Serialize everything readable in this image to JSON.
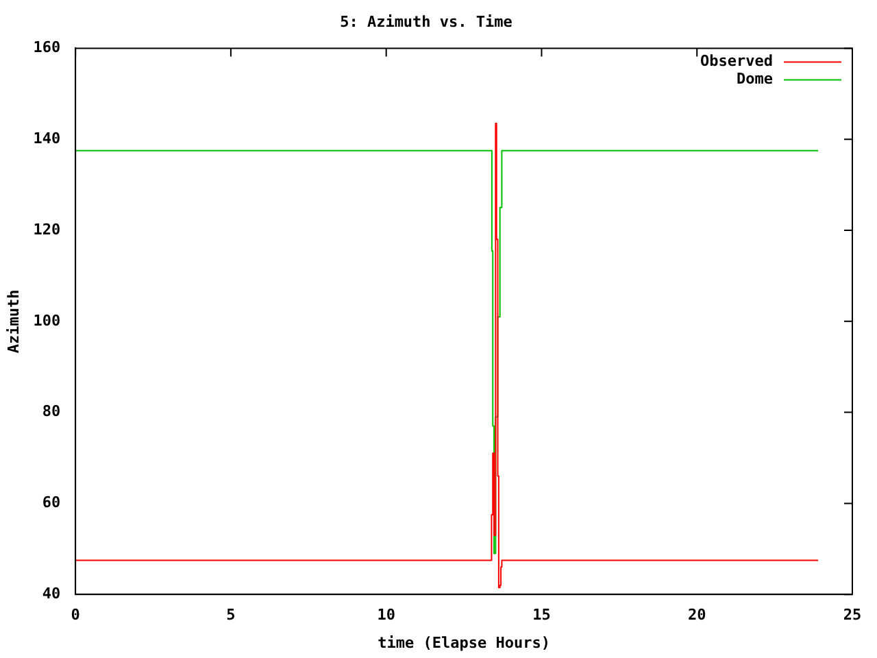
{
  "chart_data": {
    "type": "step",
    "title": "5: Azimuth vs. Time",
    "xlabel": "time (Elapse Hours)",
    "ylabel": "Azimuth",
    "xlim": [
      0,
      25
    ],
    "xticks": [
      0,
      5,
      10,
      15,
      20,
      25
    ],
    "ylim": [
      40,
      160
    ],
    "yticks": [
      40,
      60,
      80,
      100,
      120,
      140,
      160
    ],
    "grid": false,
    "legend": "top right",
    "series": [
      {
        "name": "Observed",
        "color": "#ff0000",
        "x": [
          0,
          13.39,
          13.43,
          13.47,
          13.52,
          13.55,
          13.59,
          13.62,
          13.66,
          13.69,
          13.72,
          23.9
        ],
        "values": [
          47.5,
          57.5,
          71,
          53,
          143.5,
          118,
          66,
          41.5,
          42,
          46,
          47.5,
          47.5
        ]
      },
      {
        "name": "Dome",
        "color": "#00c000",
        "x": [
          0,
          13.4,
          13.43,
          13.47,
          13.52,
          13.59,
          13.66,
          13.72,
          23.9
        ],
        "values": [
          137.5,
          115.5,
          77,
          49,
          79,
          101,
          125,
          137.5,
          137.5
        ]
      }
    ]
  }
}
